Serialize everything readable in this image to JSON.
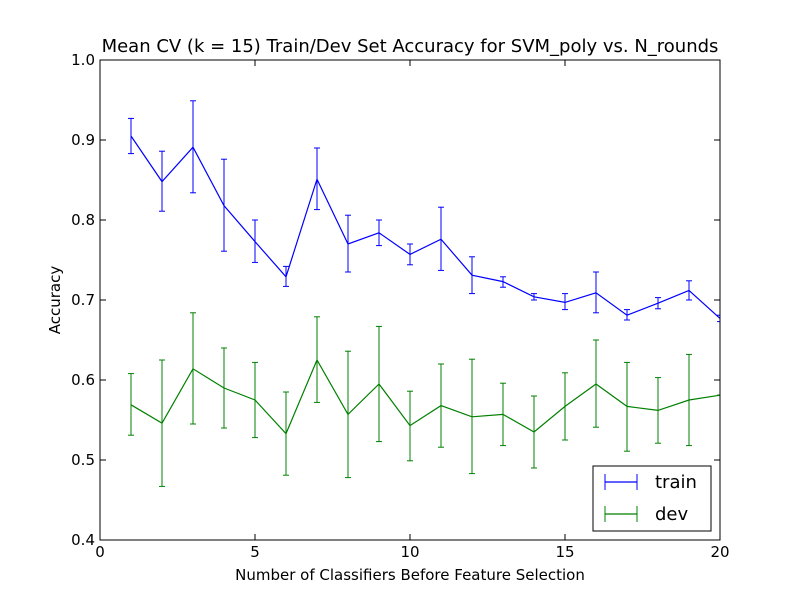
{
  "chart_data": {
    "type": "line",
    "title": "Mean CV (k = 15) Train/Dev Set Accuracy for SVM_poly vs. N_rounds",
    "xlabel": "Number of Classifiers Before Feature Selection",
    "ylabel": "Accuracy",
    "xlim": [
      0,
      20
    ],
    "ylim": [
      0.4,
      1.0
    ],
    "xticks": [
      0,
      5,
      10,
      15,
      20
    ],
    "xtick_labels": [
      "0",
      "5",
      "10",
      "15",
      "20"
    ],
    "yticks": [
      0.4,
      0.5,
      0.6,
      0.7,
      0.8,
      0.9,
      1.0
    ],
    "ytick_labels": [
      "0.4",
      "0.5",
      "0.6",
      "0.7",
      "0.8",
      "0.9",
      "1.0"
    ],
    "grid": false,
    "legend_position": "lower-right",
    "x": [
      1,
      2,
      3,
      4,
      5,
      6,
      7,
      8,
      9,
      10,
      11,
      12,
      13,
      14,
      15,
      16,
      17,
      18,
      19,
      20
    ],
    "series": [
      {
        "name": "train",
        "color": "#0000ff",
        "values": [
          0.905,
          0.848,
          0.891,
          0.818,
          0.773,
          0.729,
          0.851,
          0.77,
          0.784,
          0.757,
          0.776,
          0.731,
          0.723,
          0.704,
          0.697,
          0.709,
          0.681,
          0.696,
          0.712,
          0.677
        ],
        "err_low": [
          0.883,
          0.811,
          0.834,
          0.761,
          0.747,
          0.717,
          0.813,
          0.735,
          0.768,
          0.744,
          0.737,
          0.708,
          0.716,
          0.7,
          0.688,
          0.684,
          0.675,
          0.689,
          0.7,
          0.673
        ],
        "err_high": [
          0.927,
          0.886,
          0.949,
          0.876,
          0.8,
          0.742,
          0.89,
          0.806,
          0.8,
          0.77,
          0.816,
          0.754,
          0.729,
          0.708,
          0.708,
          0.735,
          0.688,
          0.703,
          0.724,
          0.681
        ]
      },
      {
        "name": "dev",
        "color": "#008000",
        "values": [
          0.569,
          0.546,
          0.614,
          0.59,
          0.575,
          0.533,
          0.625,
          0.557,
          0.595,
          0.543,
          0.568,
          0.554,
          0.557,
          0.535,
          0.567,
          0.595,
          0.567,
          0.562,
          0.575,
          0.581
        ],
        "err_low": [
          0.531,
          0.467,
          0.545,
          0.54,
          0.528,
          0.481,
          0.572,
          0.478,
          0.523,
          0.499,
          0.516,
          0.483,
          0.518,
          0.49,
          0.525,
          0.541,
          0.511,
          0.521,
          0.518,
          0.581
        ],
        "err_high": [
          0.608,
          0.625,
          0.684,
          0.64,
          0.622,
          0.585,
          0.679,
          0.636,
          0.667,
          0.586,
          0.62,
          0.626,
          0.596,
          0.58,
          0.609,
          0.65,
          0.622,
          0.603,
          0.632,
          0.581
        ]
      }
    ]
  }
}
